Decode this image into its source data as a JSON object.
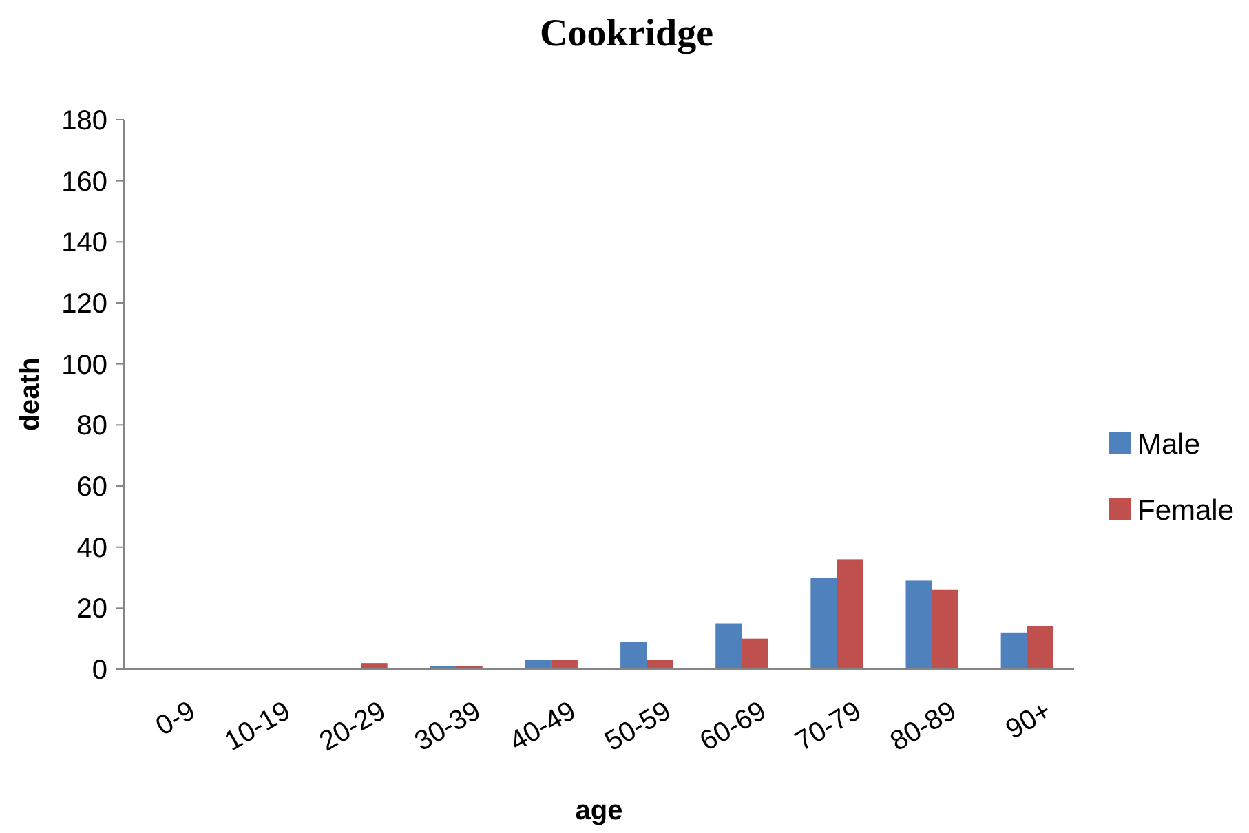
{
  "chart_data": {
    "type": "bar",
    "title": "Cookridge",
    "xlabel": "age",
    "ylabel": "death",
    "categories": [
      "0-9",
      "10-19",
      "20-29",
      "30-39",
      "40-49",
      "50-59",
      "60-69",
      "70-79",
      "80-89",
      "90+"
    ],
    "series": [
      {
        "name": "Male",
        "color": "#4f81bd",
        "values": [
          0,
          0,
          0,
          1,
          3,
          9,
          15,
          30,
          29,
          12
        ]
      },
      {
        "name": "Female",
        "color": "#c0504d",
        "values": [
          0,
          0,
          2,
          1,
          3,
          3,
          10,
          36,
          26,
          14
        ]
      }
    ],
    "ylim": [
      0,
      180
    ],
    "yticks": [
      0,
      20,
      40,
      60,
      80,
      100,
      120,
      140,
      160,
      180
    ],
    "grid": false,
    "legend": "right"
  }
}
